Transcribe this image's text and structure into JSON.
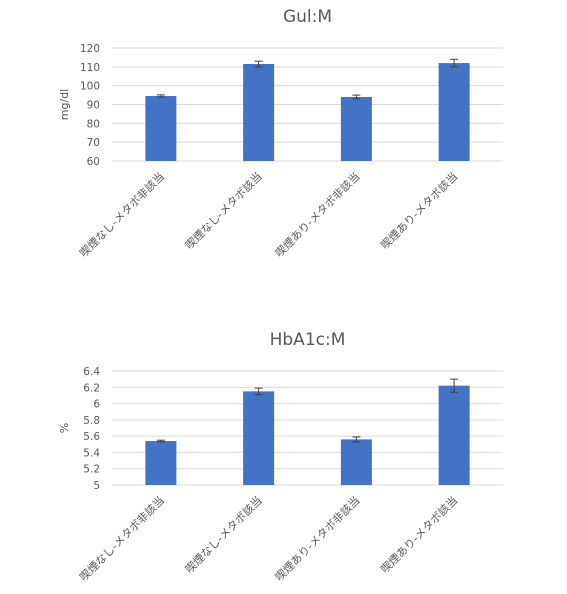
{
  "chart_data": [
    {
      "type": "bar",
      "title": "Gul:M",
      "ylabel": "mg/dl",
      "xlabel": "",
      "ylim": [
        60,
        120
      ],
      "yticks": [
        60,
        70,
        80,
        90,
        100,
        110,
        120
      ],
      "categories": [
        "喫煙なし-メタボ非該当",
        "喫煙なし-メタボ該当",
        "喫煙あり-メタボ非該当",
        "喫煙あり-メタボ該当"
      ],
      "values": [
        94.5,
        111.5,
        94.0,
        112.0
      ],
      "errors": [
        0.6,
        1.5,
        1.0,
        2.0
      ],
      "grid": true,
      "bar_color": "#4472c4"
    },
    {
      "type": "bar",
      "title": "HbA1c:M",
      "ylabel": "%",
      "xlabel": "",
      "ylim": [
        5,
        6.4
      ],
      "yticks": [
        "5",
        "5.2",
        "5.4",
        "5.6",
        "5.8",
        "6",
        "6.2",
        "6.4"
      ],
      "categories": [
        "喫煙なし-メタボ非該当",
        "喫煙なし-メタボ該当",
        "喫煙あり-メタボ非該当",
        "喫煙あり-メタボ該当"
      ],
      "values": [
        5.54,
        6.15,
        5.56,
        6.22
      ],
      "errors": [
        0.01,
        0.04,
        0.03,
        0.08
      ],
      "grid": true,
      "bar_color": "#4472c4"
    }
  ]
}
